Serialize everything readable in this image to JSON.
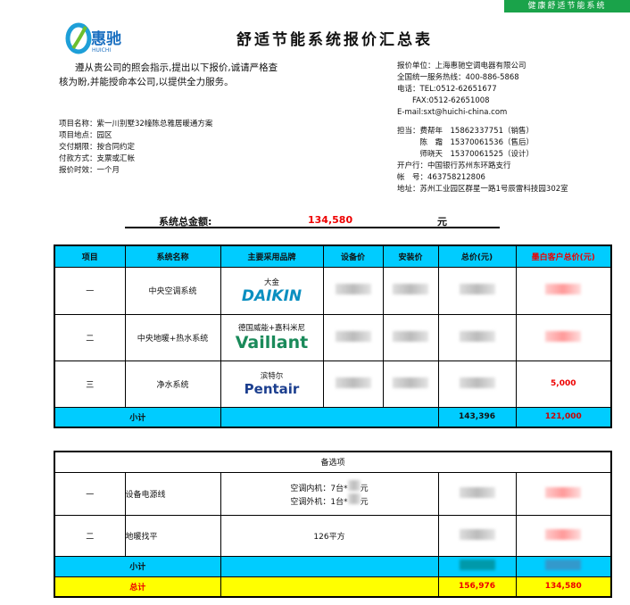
{
  "badge": "健康舒适节能系统",
  "logo": {
    "cn": "惠驰",
    "en": "HUICHI"
  },
  "title": "舒适节能系统报价汇总表",
  "intro": "遵从贵公司的照会指示,提出以下报价,诚请严格查核为盼,并能授命本公司,以提供全力服务。",
  "project": [
    "项目名称：紫一川别墅32幢陈总雅居暖通方案",
    "项目地点：园区",
    "交付期限：按合同约定",
    "付款方式：支票或汇帐",
    "报价时效：一个月"
  ],
  "company": [
    "报价单位：上海惠驰空调电器有限公司",
    "全国统一服务热线：400-886-5868",
    "电话：TEL:0512-62651677",
    "　　FAX:0512-62651008",
    "E-mail:sxt@huichi-china.com",
    "",
    "担当：费帮年　15862337751（销售）",
    "　　　陈　霜　15370061536（售后）",
    "　　　师晓天　15370061525（设计）",
    "开户行：中国银行苏州东环路支行",
    "帐　号：463758212806",
    "地址：苏州工业园区群星一路1号辰雷科技园302室"
  ],
  "summary": {
    "label": "系统总金额:",
    "value": "134,580",
    "unit": "元"
  },
  "table": {
    "headers": [
      "项目",
      "系统名称",
      "主要采用品牌",
      "设备价",
      "安装价",
      "总价(元)",
      "墨白客户总价(元)"
    ],
    "rows": [
      {
        "no": "一",
        "name": "中央空调系统",
        "brand": "大金",
        "logo": "DAIKIN",
        "client": ""
      },
      {
        "no": "二",
        "name": "中央地暖+热水系统",
        "brand": "德国威能+嘉科米尼",
        "logo": "Vaillant",
        "client": ""
      },
      {
        "no": "三",
        "name": "净水系统",
        "brand": "滨特尔",
        "logo": "Pentair",
        "client": "5,000"
      }
    ],
    "subtotal": {
      "label": "小计",
      "total": "143,396",
      "client": "121,000"
    }
  },
  "options": {
    "title": "备选项",
    "rows": [
      {
        "no": "一",
        "name": "设备电源线",
        "desc1": "空调内机：7台*",
        "desc1b": "元",
        "desc2": "空调外机：1台*",
        "desc2b": "元"
      },
      {
        "no": "二",
        "name": "地暖找平",
        "desc1": "126平方"
      }
    ],
    "subtotal": "小计",
    "grand": {
      "label": "总计",
      "total": "156,976",
      "client": "134,580"
    }
  },
  "colors": {
    "header": "#00ccff",
    "grand": "#ffff00",
    "accent": "#e00000",
    "badge": "#1aa34a"
  }
}
